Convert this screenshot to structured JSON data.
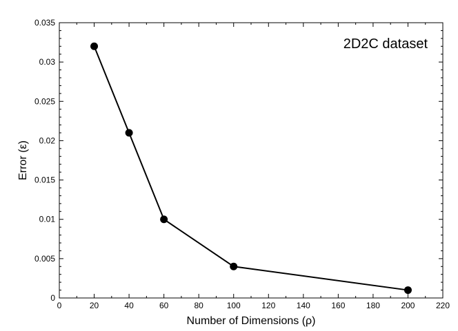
{
  "chart_data": {
    "type": "line",
    "annotation": "2D2C dataset",
    "xlabel": "Number of Dimensions (ρ)",
    "ylabel": "Error (ε)",
    "xlim": [
      0,
      220
    ],
    "ylim": [
      0,
      0.035
    ],
    "x_ticks": [
      0,
      20,
      40,
      60,
      80,
      100,
      120,
      140,
      160,
      180,
      200,
      220
    ],
    "y_ticks": [
      0,
      0.005,
      0.01,
      0.015,
      0.02,
      0.025,
      0.03,
      0.035
    ],
    "x_tick_labels": [
      "0",
      "20",
      "40",
      "60",
      "80",
      "100",
      "120",
      "140",
      "160",
      "180",
      "200",
      "220"
    ],
    "y_tick_labels": [
      "0",
      "0.005",
      "0.01",
      "0.015",
      "0.02",
      "0.025",
      "0.03",
      "0.035"
    ],
    "grid": false,
    "series": [
      {
        "x": [
          20,
          40,
          60,
          100,
          200
        ],
        "y": [
          0.032,
          0.021,
          0.01,
          0.004,
          0.001
        ],
        "color": "#000000",
        "marker": "circle"
      }
    ]
  }
}
